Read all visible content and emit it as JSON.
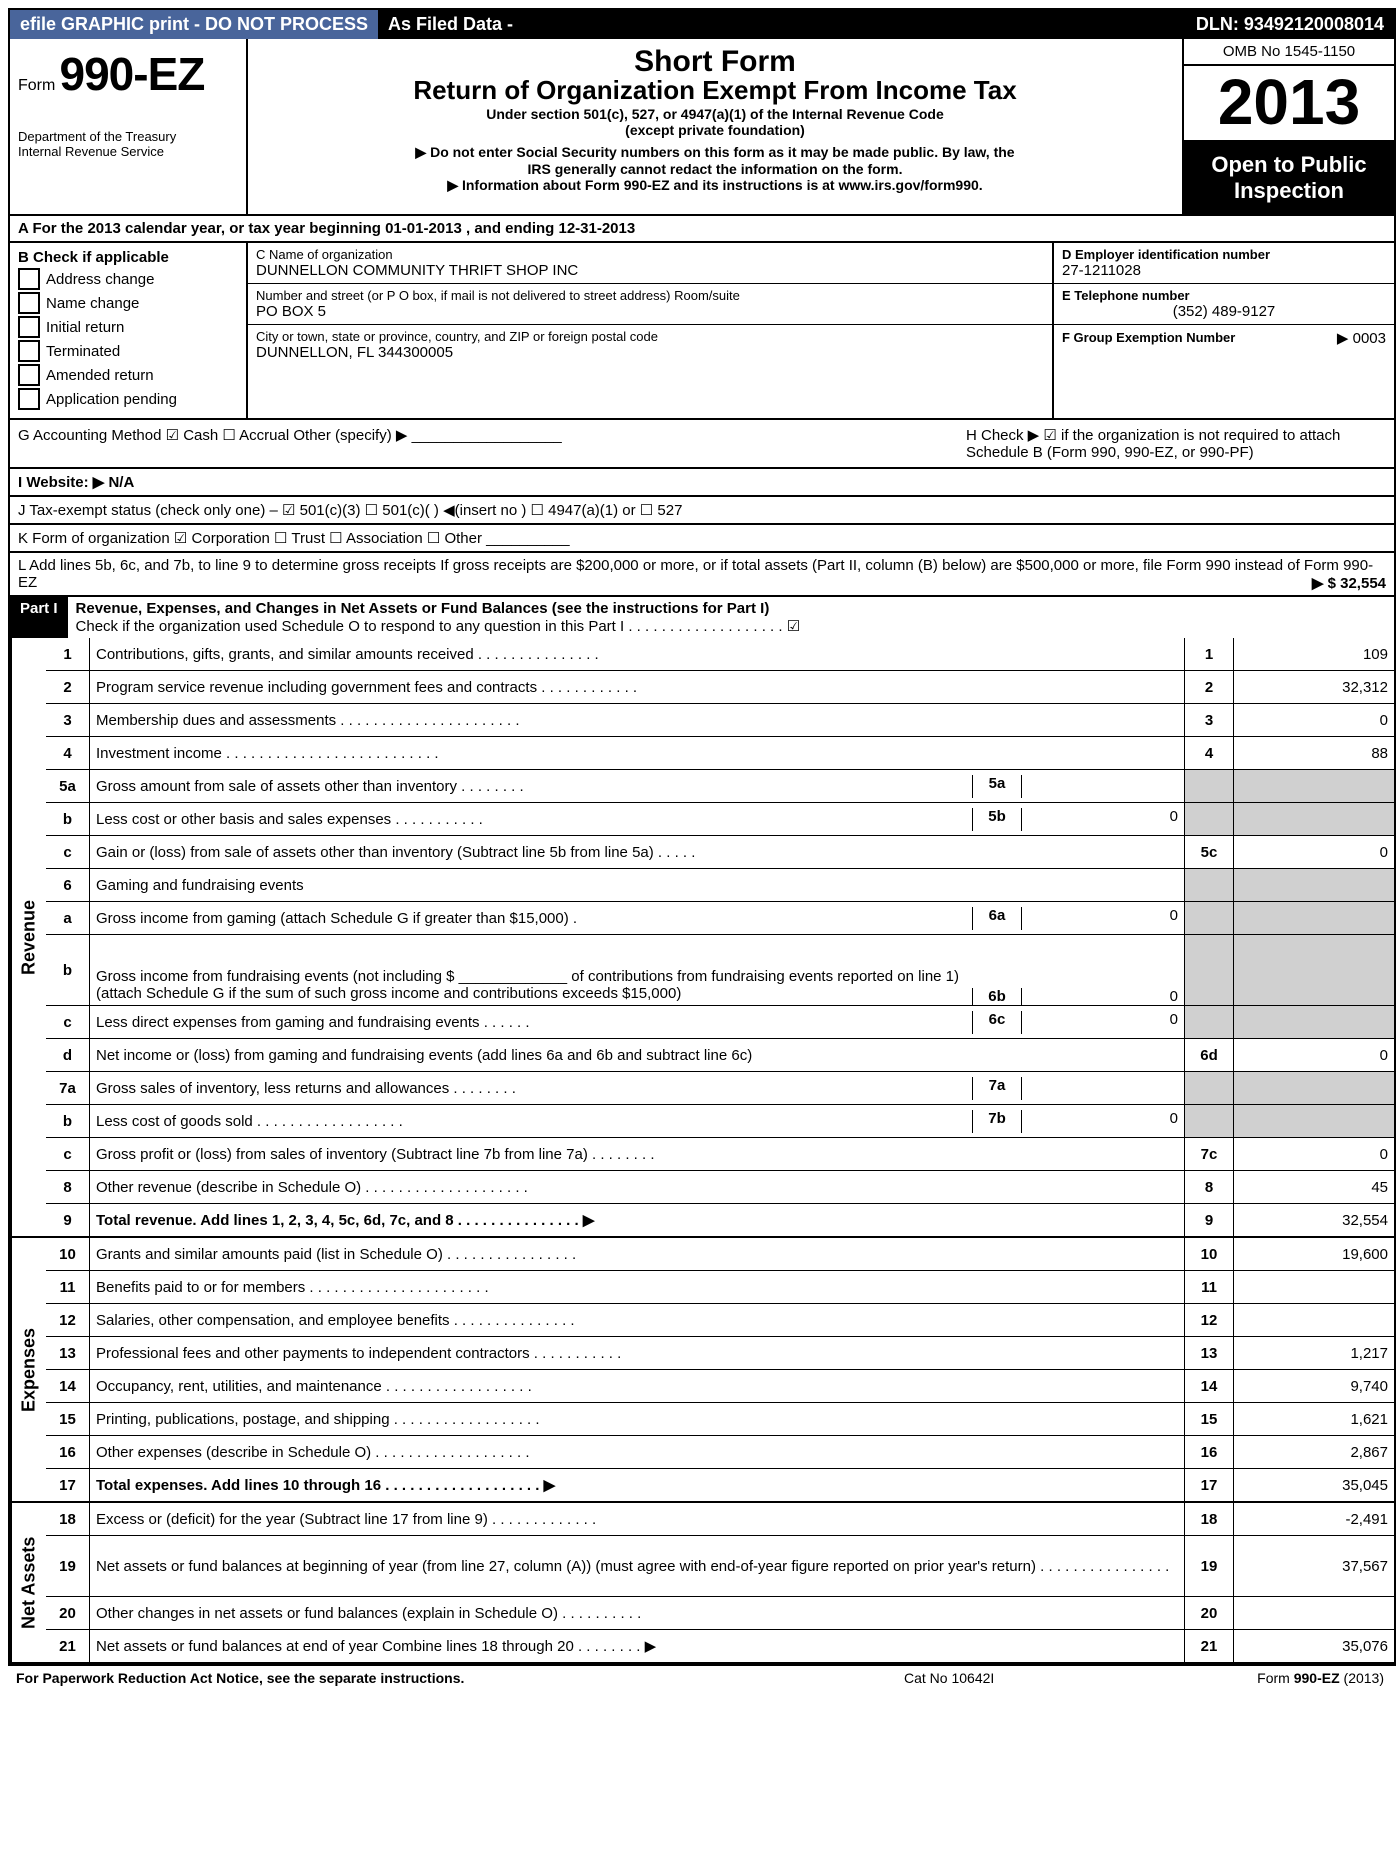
{
  "topbar": {
    "efile": "efile GRAPHIC print - DO NOT PROCESS",
    "asfiled": "As Filed Data -",
    "dln": "DLN: 93492120008014"
  },
  "header": {
    "form_word": "Form",
    "form_num": "990-EZ",
    "dept1": "Department of the Treasury",
    "dept2": "Internal Revenue Service",
    "short_form": "Short Form",
    "return_of": "Return of Organization Exempt From Income Tax",
    "under": "Under section 501(c), 527, or 4947(a)(1) of the Internal Revenue Code",
    "except": "(except private foundation)",
    "donot1": "▶ Do not enter Social Security numbers on this form as it may be made public. By law, the",
    "donot2": "IRS generally cannot redact the information on the form.",
    "info": "▶ Information about Form 990-EZ and its instructions is at www.irs.gov/form990.",
    "omb": "OMB No  1545-1150",
    "year": "2013",
    "open1": "Open to Public",
    "open2": "Inspection"
  },
  "row_a": "A  For the 2013 calendar year, or tax year beginning 01-01-2013               , and ending 12-31-2013",
  "col_b": {
    "title": "B  Check if applicable",
    "items": [
      "Address change",
      "Name change",
      "Initial return",
      "Terminated",
      "Amended return",
      "Application pending"
    ]
  },
  "col_c": {
    "cname_label": "C Name of organization",
    "cname": "DUNNELLON COMMUNITY THRIFT SHOP INC",
    "street_label": "Number and street (or P  O  box, if mail is not delivered to street address) Room/suite",
    "street": "PO BOX 5",
    "city_label": "City or town, state or province, country, and ZIP or foreign postal code",
    "city": "DUNNELLON, FL  344300005"
  },
  "col_d": {
    "d_label": "D Employer identification number",
    "d_val": "27-1211028",
    "e_label": "E Telephone number",
    "e_val": "(352) 489-9127",
    "f_label": "F Group Exemption Number",
    "f_val": "▶ 0003"
  },
  "row_g": "G Accounting Method    ☑ Cash  ☐ Accrual   Other (specify) ▶ __________________",
  "row_h": "H  Check ▶ ☑ if the organization is not required to attach Schedule B (Form 990, 990-EZ, or 990-PF)",
  "row_i": "I Website: ▶ N/A",
  "row_j": "J Tax-exempt status (check only one) – ☑ 501(c)(3)   ☐ 501(c)(  ) ◀(insert no )  ☐ 4947(a)(1) or  ☐ 527",
  "row_k": "K Form of organization    ☑ Corporation  ☐ Trust  ☐ Association  ☐ Other  __________",
  "row_l": "L Add lines 5b, 6c, and 7b, to line 9 to determine gross receipts  If gross receipts are $200,000 or more, or if total assets (Part II, column (B) below) are $500,000 or more, file Form 990 instead of Form 990-EZ",
  "row_l_amount": "▶ $ 32,554",
  "part1": {
    "label": "Part I",
    "title": "Revenue, Expenses, and Changes in Net Assets or Fund Balances (see the instructions for Part I)",
    "subtitle": "Check if the organization used Schedule O to respond to any question in this Part I  .  .  .  .  .  .  .  .  .  .  .  .  .  .  .  .  .  .  . ☑"
  },
  "sections": {
    "revenue": "Revenue",
    "expenses": "Expenses",
    "netassets": "Net Assets"
  },
  "lines": [
    {
      "sect": "rev",
      "n": "1",
      "desc": "Contributions, gifts, grants, and similar amounts received    .   .   .   .   .   .   .   .   .   .   .   .   .   .   .",
      "box": "1",
      "val": "109"
    },
    {
      "sect": "rev",
      "n": "2",
      "desc": "Program service revenue including government fees and contracts    .   .   .   .   .   .   .   .   .   .   .   .",
      "box": "2",
      "val": "32,312"
    },
    {
      "sect": "rev",
      "n": "3",
      "desc": "Membership dues and assessments    .   .   .   .   .   .   .   .   .   .   .   .   .   .   .   .   .   .   .   .   .   .",
      "box": "3",
      "val": "0"
    },
    {
      "sect": "rev",
      "n": "4",
      "desc": "Investment income    .   .   .   .   .   .   .   .   .   .   .   .   .   .   .   .   .   .   .   .   .   .   .   .   .   .",
      "box": "4",
      "val": "88"
    },
    {
      "sect": "rev",
      "n": "5a",
      "desc": "Gross amount from sale of assets other than inventory    .   .   .   .   .   .   .   .",
      "inner_n": "5a",
      "inner_v": "",
      "gray": true
    },
    {
      "sect": "rev",
      "n": "b",
      "desc": "Less  cost or other basis and sales expenses    .   .   .   .   .   .   .   .   .   .   .",
      "inner_n": "5b",
      "inner_v": "0",
      "gray": true
    },
    {
      "sect": "rev",
      "n": "c",
      "desc": "Gain or (loss) from sale of assets other than inventory (Subtract line 5b from line 5a)   .   .   .   .   .",
      "box": "5c",
      "val": "0"
    },
    {
      "sect": "rev",
      "n": "6",
      "desc": "Gaming and fundraising events",
      "gray": true,
      "noboxes": true
    },
    {
      "sect": "rev",
      "n": "a",
      "desc": "Gross income from gaming (attach Schedule G if greater than $15,000)    .",
      "inner_n": "6a",
      "inner_v": "0",
      "gray": true
    },
    {
      "sect": "rev",
      "n": "b",
      "desc": "Gross income from fundraising events (not including $ _____________ of contributions from fundraising events reported on line 1) (attach Schedule G if the sum of such gross income and contributions exceeds $15,000)",
      "inner_n": "6b",
      "inner_v": "0",
      "gray": true,
      "tall": true
    },
    {
      "sect": "rev",
      "n": "c",
      "desc": "Less  direct expenses from gaming and fundraising events    .   .   .   .   .   .",
      "inner_n": "6c",
      "inner_v": "0",
      "gray": true
    },
    {
      "sect": "rev",
      "n": "d",
      "desc": "Net income or (loss) from gaming and fundraising events (add lines 6a and 6b and subtract line 6c)",
      "box": "6d",
      "val": "0"
    },
    {
      "sect": "rev",
      "n": "7a",
      "desc": "Gross sales of inventory, less returns and allowances    .   .   .   .   .   .   .   .",
      "inner_n": "7a",
      "inner_v": "",
      "gray": true
    },
    {
      "sect": "rev",
      "n": "b",
      "desc": "Less  cost of goods sold    .   .   .   .   .   .   .   .   .   .   .   .   .   .   .   .   .   .",
      "inner_n": "7b",
      "inner_v": "0",
      "gray": true
    },
    {
      "sect": "rev",
      "n": "c",
      "desc": "Gross profit or (loss) from sales of inventory (Subtract line 7b from line 7a)   .   .   .   .   .   .   .   .",
      "box": "7c",
      "val": "0"
    },
    {
      "sect": "rev",
      "n": "8",
      "desc": "Other revenue (describe in Schedule O)   .   .   .   .   .   .   .   .   .   .   .   .   .   .   .   .   .   .   .   .",
      "box": "8",
      "val": "45"
    },
    {
      "sect": "rev",
      "n": "9",
      "desc": "Total revenue. Add lines 1, 2, 3, 4, 5c, 6d, 7c, and 8    .   .   .   .   .   .   .   .   .   .   .   .   .   .   . ▶",
      "box": "9",
      "val": "32,554",
      "bold": true
    },
    {
      "sect": "exp",
      "n": "10",
      "desc": "Grants and similar amounts paid (list in Schedule O)   .   .   .   .   .   .   .   .   .   .   .   .   .   .   .   .",
      "box": "10",
      "val": "19,600"
    },
    {
      "sect": "exp",
      "n": "11",
      "desc": "Benefits paid to or for members    .   .   .   .   .   .   .   .   .   .   .   .   .   .   .   .   .   .   .   .   .   .",
      "box": "11",
      "val": ""
    },
    {
      "sect": "exp",
      "n": "12",
      "desc": "Salaries, other compensation, and employee benefits    .   .   .   .   .   .   .   .   .   .   .   .   .   .   .",
      "box": "12",
      "val": ""
    },
    {
      "sect": "exp",
      "n": "13",
      "desc": "Professional fees and other payments to independent contractors    .   .   .   .   .   .   .   .   .   .   .",
      "box": "13",
      "val": "1,217"
    },
    {
      "sect": "exp",
      "n": "14",
      "desc": "Occupancy, rent, utilities, and maintenance    .   .   .   .   .   .   .   .   .   .   .   .   .   .   .   .   .   .",
      "box": "14",
      "val": "9,740"
    },
    {
      "sect": "exp",
      "n": "15",
      "desc": "Printing, publications, postage, and shipping    .   .   .   .   .   .   .   .   .   .   .   .   .   .   .   .   .   .",
      "box": "15",
      "val": "1,621"
    },
    {
      "sect": "exp",
      "n": "16",
      "desc": "Other expenses (describe in Schedule O)    .   .   .   .   .   .   .   .   .   .   .   .   .   .   .   .   .   .   .",
      "box": "16",
      "val": "2,867"
    },
    {
      "sect": "exp",
      "n": "17",
      "desc": "Total expenses. Add lines 10 through 16    .   .   .   .   .   .   .   .   .   .   .   .   .   .   .   .   .   .   . ▶",
      "box": "17",
      "val": "35,045",
      "bold": true
    },
    {
      "sect": "net",
      "n": "18",
      "desc": "Excess or (deficit) for the year (Subtract line 17 from line 9)    .   .   .   .   .   .   .   .   .   .   .   .   .",
      "box": "18",
      "val": "-2,491"
    },
    {
      "sect": "net",
      "n": "19",
      "desc": "Net assets or fund balances at beginning of year (from line 27, column (A)) (must agree with end-of-year figure reported on prior year's return)    .   .   .   .   .   .   .   .   .   .   .   .   .   .   .   .",
      "box": "19",
      "val": "37,567",
      "tall": true
    },
    {
      "sect": "net",
      "n": "20",
      "desc": "Other changes in net assets or fund balances (explain in Schedule O)    .   .   .   .   .   .   .   .   .   .",
      "box": "20",
      "val": ""
    },
    {
      "sect": "net",
      "n": "21",
      "desc": "Net assets or fund balances at end of year  Combine lines 18 through 20    .   .   .   .   .   .   .   . ▶",
      "box": "21",
      "val": "35,076"
    }
  ],
  "footer": {
    "left": "For Paperwork Reduction Act Notice, see the separate instructions.",
    "mid": "Cat  No  10642I",
    "right": "Form 990-EZ (2013)"
  }
}
